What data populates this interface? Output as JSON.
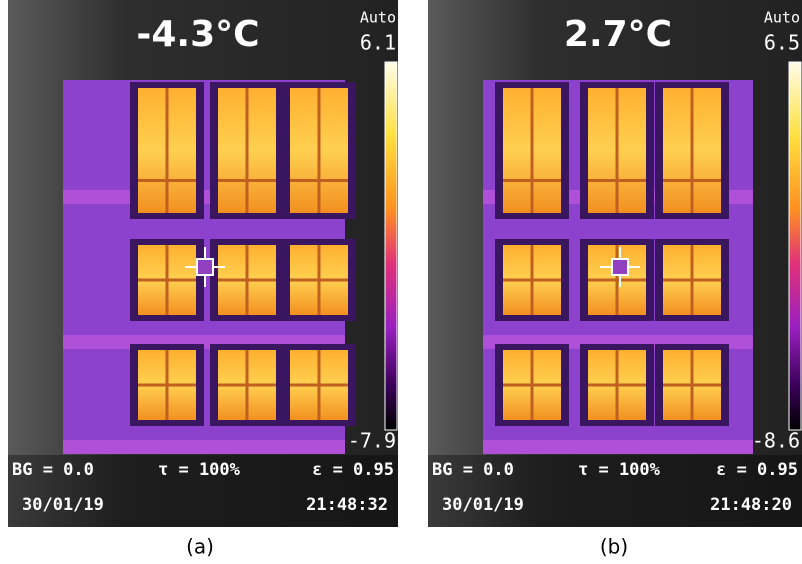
{
  "panels": [
    {
      "temperature": "-4.3°C",
      "mode": "Auto",
      "scale_max": "6.1",
      "scale_min": "-7.9",
      "background": "BG = 0.0",
      "transmission": "τ = 100%",
      "emissivity": "ε = 0.95",
      "date": "30/01/19",
      "time": "21:48:32",
      "caption": "(a)"
    },
    {
      "temperature": "2.7°C",
      "mode": "Auto",
      "scale_max": "6.5",
      "scale_min": "-8.6",
      "background": "BG = 0.0",
      "transmission": "τ = 100%",
      "emissivity": "ε = 0.95",
      "date": "30/01/19",
      "time": "21:48:20",
      "caption": "(b)"
    }
  ]
}
